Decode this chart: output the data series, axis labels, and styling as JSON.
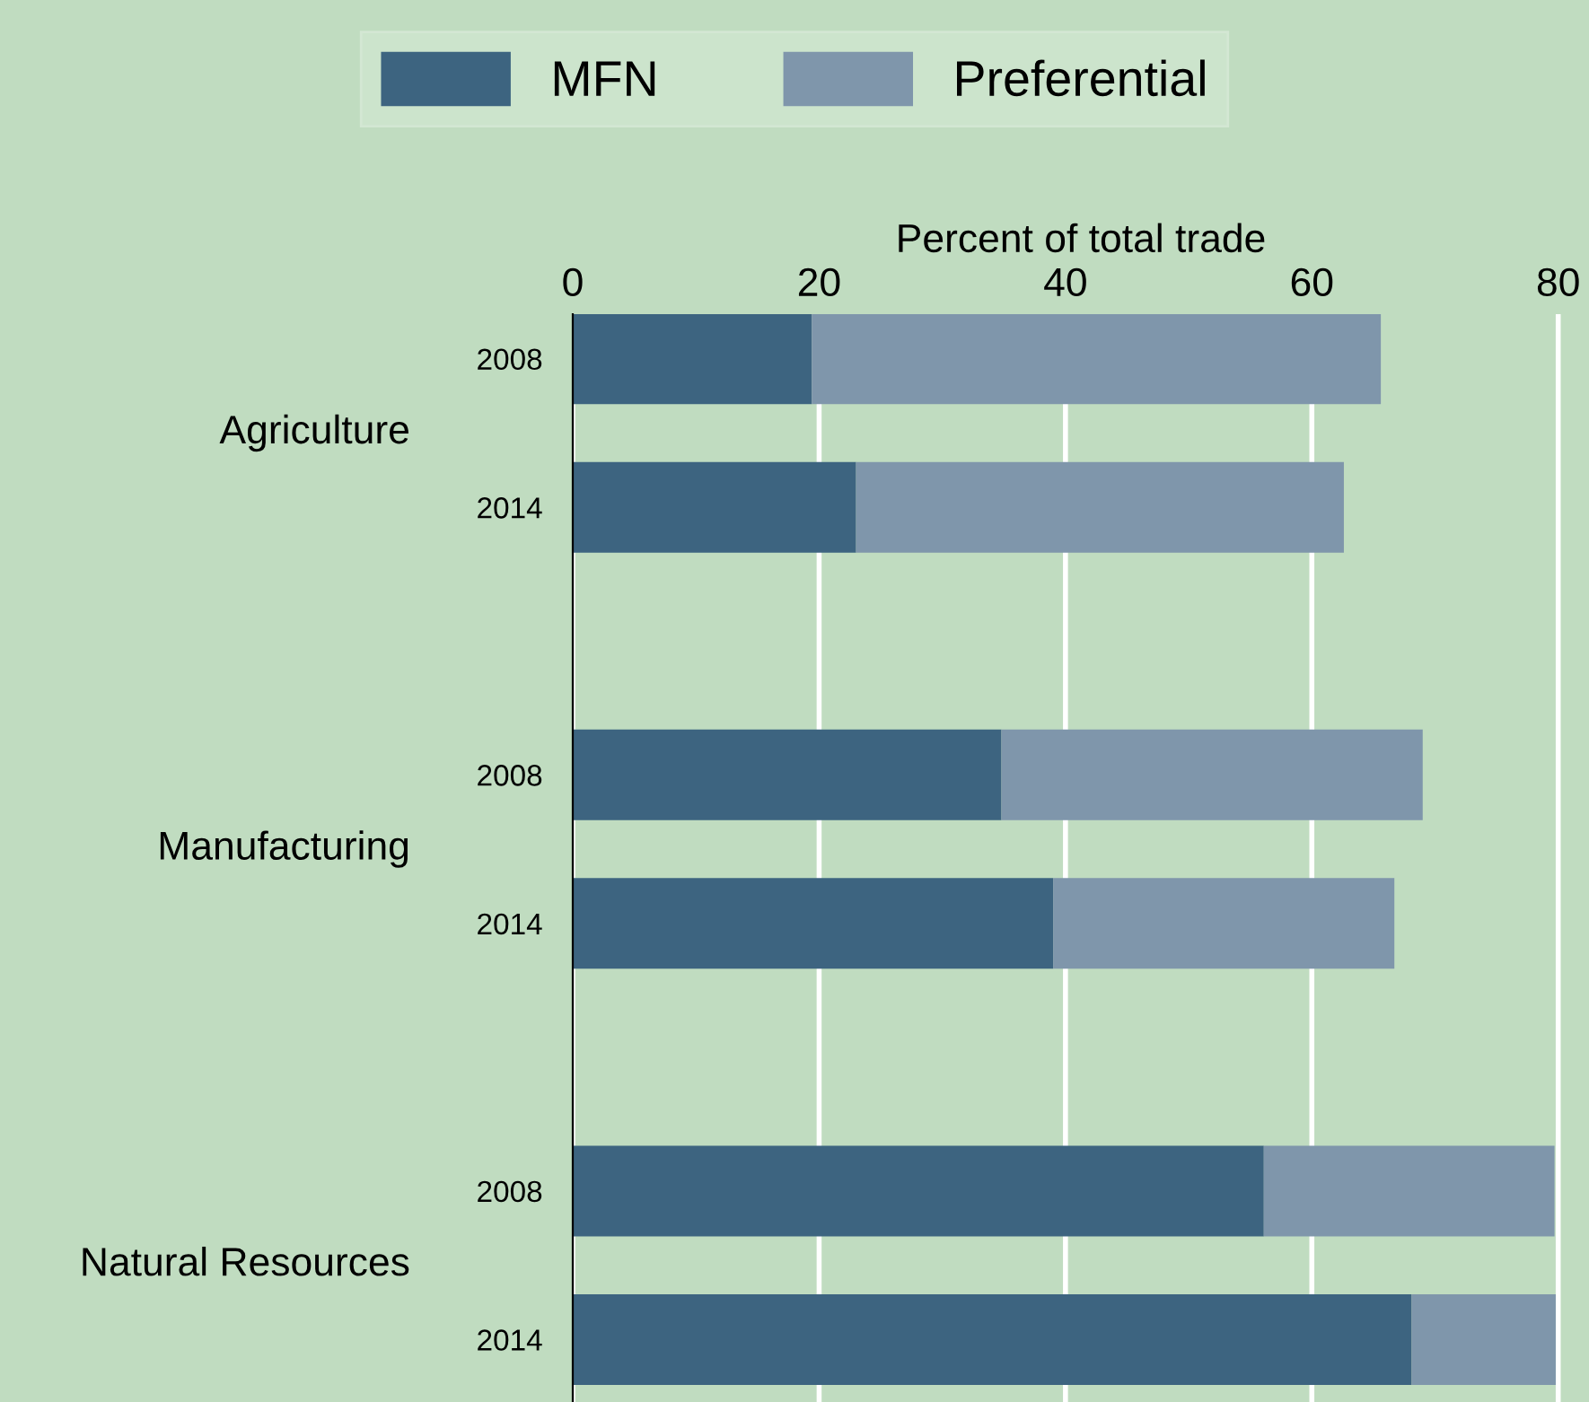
{
  "chart_data": {
    "type": "bar",
    "orientation": "horizontal",
    "stacked": true,
    "xlabel": "Percent of total trade",
    "categories": [
      "2008",
      "2014",
      "2008",
      "2014",
      "2008",
      "2014"
    ],
    "annotations": [
      "Agriculture",
      "Manufacturing",
      "Natural Resources"
    ],
    "series": [
      {
        "name": "MFN",
        "color": "#3d6480",
        "values": [
          19.4,
          23.0,
          34.8,
          39.0,
          56.1,
          68.1
        ]
      },
      {
        "name": "Preferential",
        "color": "#7f96ab",
        "values": [
          46.2,
          39.6,
          34.2,
          27.7,
          23.6,
          11.7
        ]
      }
    ],
    "xlim": [
      0,
      82.5
    ],
    "xticks": [
      0,
      20,
      40,
      60,
      80
    ],
    "grid": "x",
    "legend": "top"
  }
}
